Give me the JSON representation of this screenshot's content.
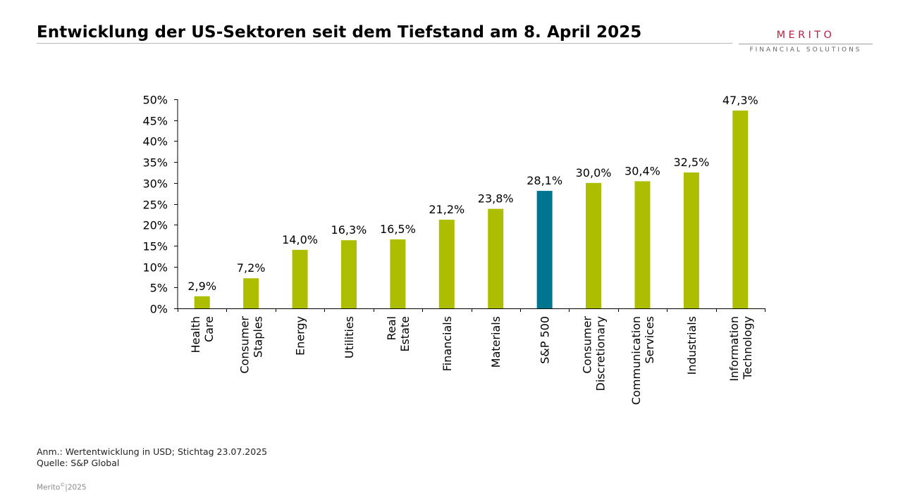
{
  "title": "Entwicklung der US-Sektoren seit dem Tiefstand am 8. April 2025",
  "logo": {
    "name": "MERITO",
    "subtitle": "FINANCIAL SOLUTIONS",
    "color": "#b32746"
  },
  "footer": {
    "note": "Anm.: Wertentwicklung in USD; Stichtag 23.07.2025",
    "source": "Quelle: S&P Global",
    "copyright_name": "Merito",
    "copyright_mark": "©",
    "copyright_year": "|2025"
  },
  "colors": {
    "sector": "#adbe00",
    "benchmark": "#00758f"
  },
  "chart_data": {
    "type": "bar",
    "categories": [
      [
        "Health",
        "Care"
      ],
      [
        "Consumer",
        "Staples"
      ],
      [
        "Energy"
      ],
      [
        "Utilities"
      ],
      [
        "Real",
        "Estate"
      ],
      [
        "Financials"
      ],
      [
        "Materials"
      ],
      [
        "S&P 500"
      ],
      [
        "Consumer",
        "Discretionary"
      ],
      [
        "Communication",
        "Services"
      ],
      [
        "Industrials"
      ],
      [
        "Information",
        "Technology"
      ]
    ],
    "values": [
      2.9,
      7.2,
      14.0,
      16.3,
      16.5,
      21.2,
      23.8,
      28.1,
      30.0,
      30.4,
      32.5,
      47.3
    ],
    "data_labels": [
      "2,9%",
      "7,2%",
      "14,0%",
      "16,3%",
      "16,5%",
      "21,2%",
      "23,8%",
      "28,1%",
      "30,0%",
      "30,4%",
      "32,5%",
      "47,3%"
    ],
    "highlight_index": 7,
    "ylim": [
      0,
      50
    ],
    "yticks": [
      0,
      5,
      10,
      15,
      20,
      25,
      30,
      35,
      40,
      45,
      50
    ],
    "ytick_labels": [
      "0%",
      "5%",
      "10%",
      "15%",
      "20%",
      "25%",
      "30%",
      "35%",
      "40%",
      "45%",
      "50%"
    ],
    "grid": false,
    "legend": "none"
  }
}
